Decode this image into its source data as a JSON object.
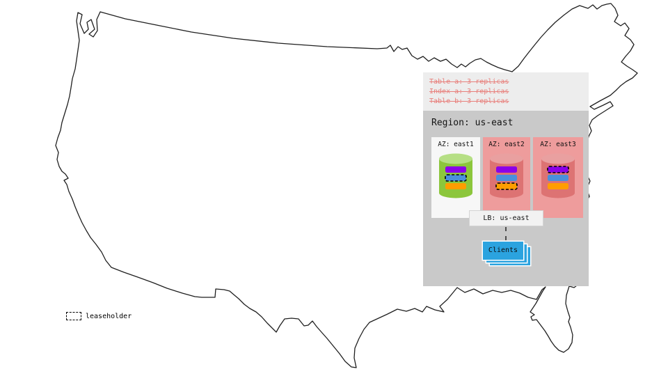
{
  "zone_config": {
    "lines": [
      "Table a: 3 replicas",
      "Index a: 3 replicas",
      "Table b: 3 replicas"
    ]
  },
  "region": {
    "title": "Region: us-east",
    "azs": [
      {
        "label": "AZ: east1",
        "box_color": "#f7f7f7",
        "cylinder": {
          "body": "#8cc63c",
          "top": "#b6df85"
        },
        "replicas": [
          {
            "color": "#8b00e8",
            "leaseholder": false
          },
          {
            "color": "#4a8fdc",
            "leaseholder": true
          },
          {
            "color": "#ff9d00",
            "leaseholder": false
          }
        ]
      },
      {
        "label": "AZ: east2",
        "box_color": "#ee9c9c",
        "cylinder": {
          "body": "#dd7373",
          "top": "#e9a0a0"
        },
        "replicas": [
          {
            "color": "#8b00e8",
            "leaseholder": false
          },
          {
            "color": "#4a8fdc",
            "leaseholder": false
          },
          {
            "color": "#ff9d00",
            "leaseholder": true
          }
        ]
      },
      {
        "label": "AZ: east3",
        "box_color": "#ee9c9c",
        "cylinder": {
          "body": "#dd7373",
          "top": "#e9a0a0"
        },
        "replicas": [
          {
            "color": "#8b00e8",
            "leaseholder": true
          },
          {
            "color": "#4a8fdc",
            "leaseholder": false
          },
          {
            "color": "#ff9d00",
            "leaseholder": false
          }
        ]
      }
    ],
    "lb_label": "LB: us-east",
    "clients_label": "Clients"
  },
  "legend": {
    "label": "leaseholder"
  },
  "colors": {
    "map_outline": "#1f1f1f",
    "zone_config_bg": "#ededed",
    "zone_config_text": "#e8807c",
    "region_bg": "#c9c9c9",
    "clients_blue": "#2ba3df"
  }
}
